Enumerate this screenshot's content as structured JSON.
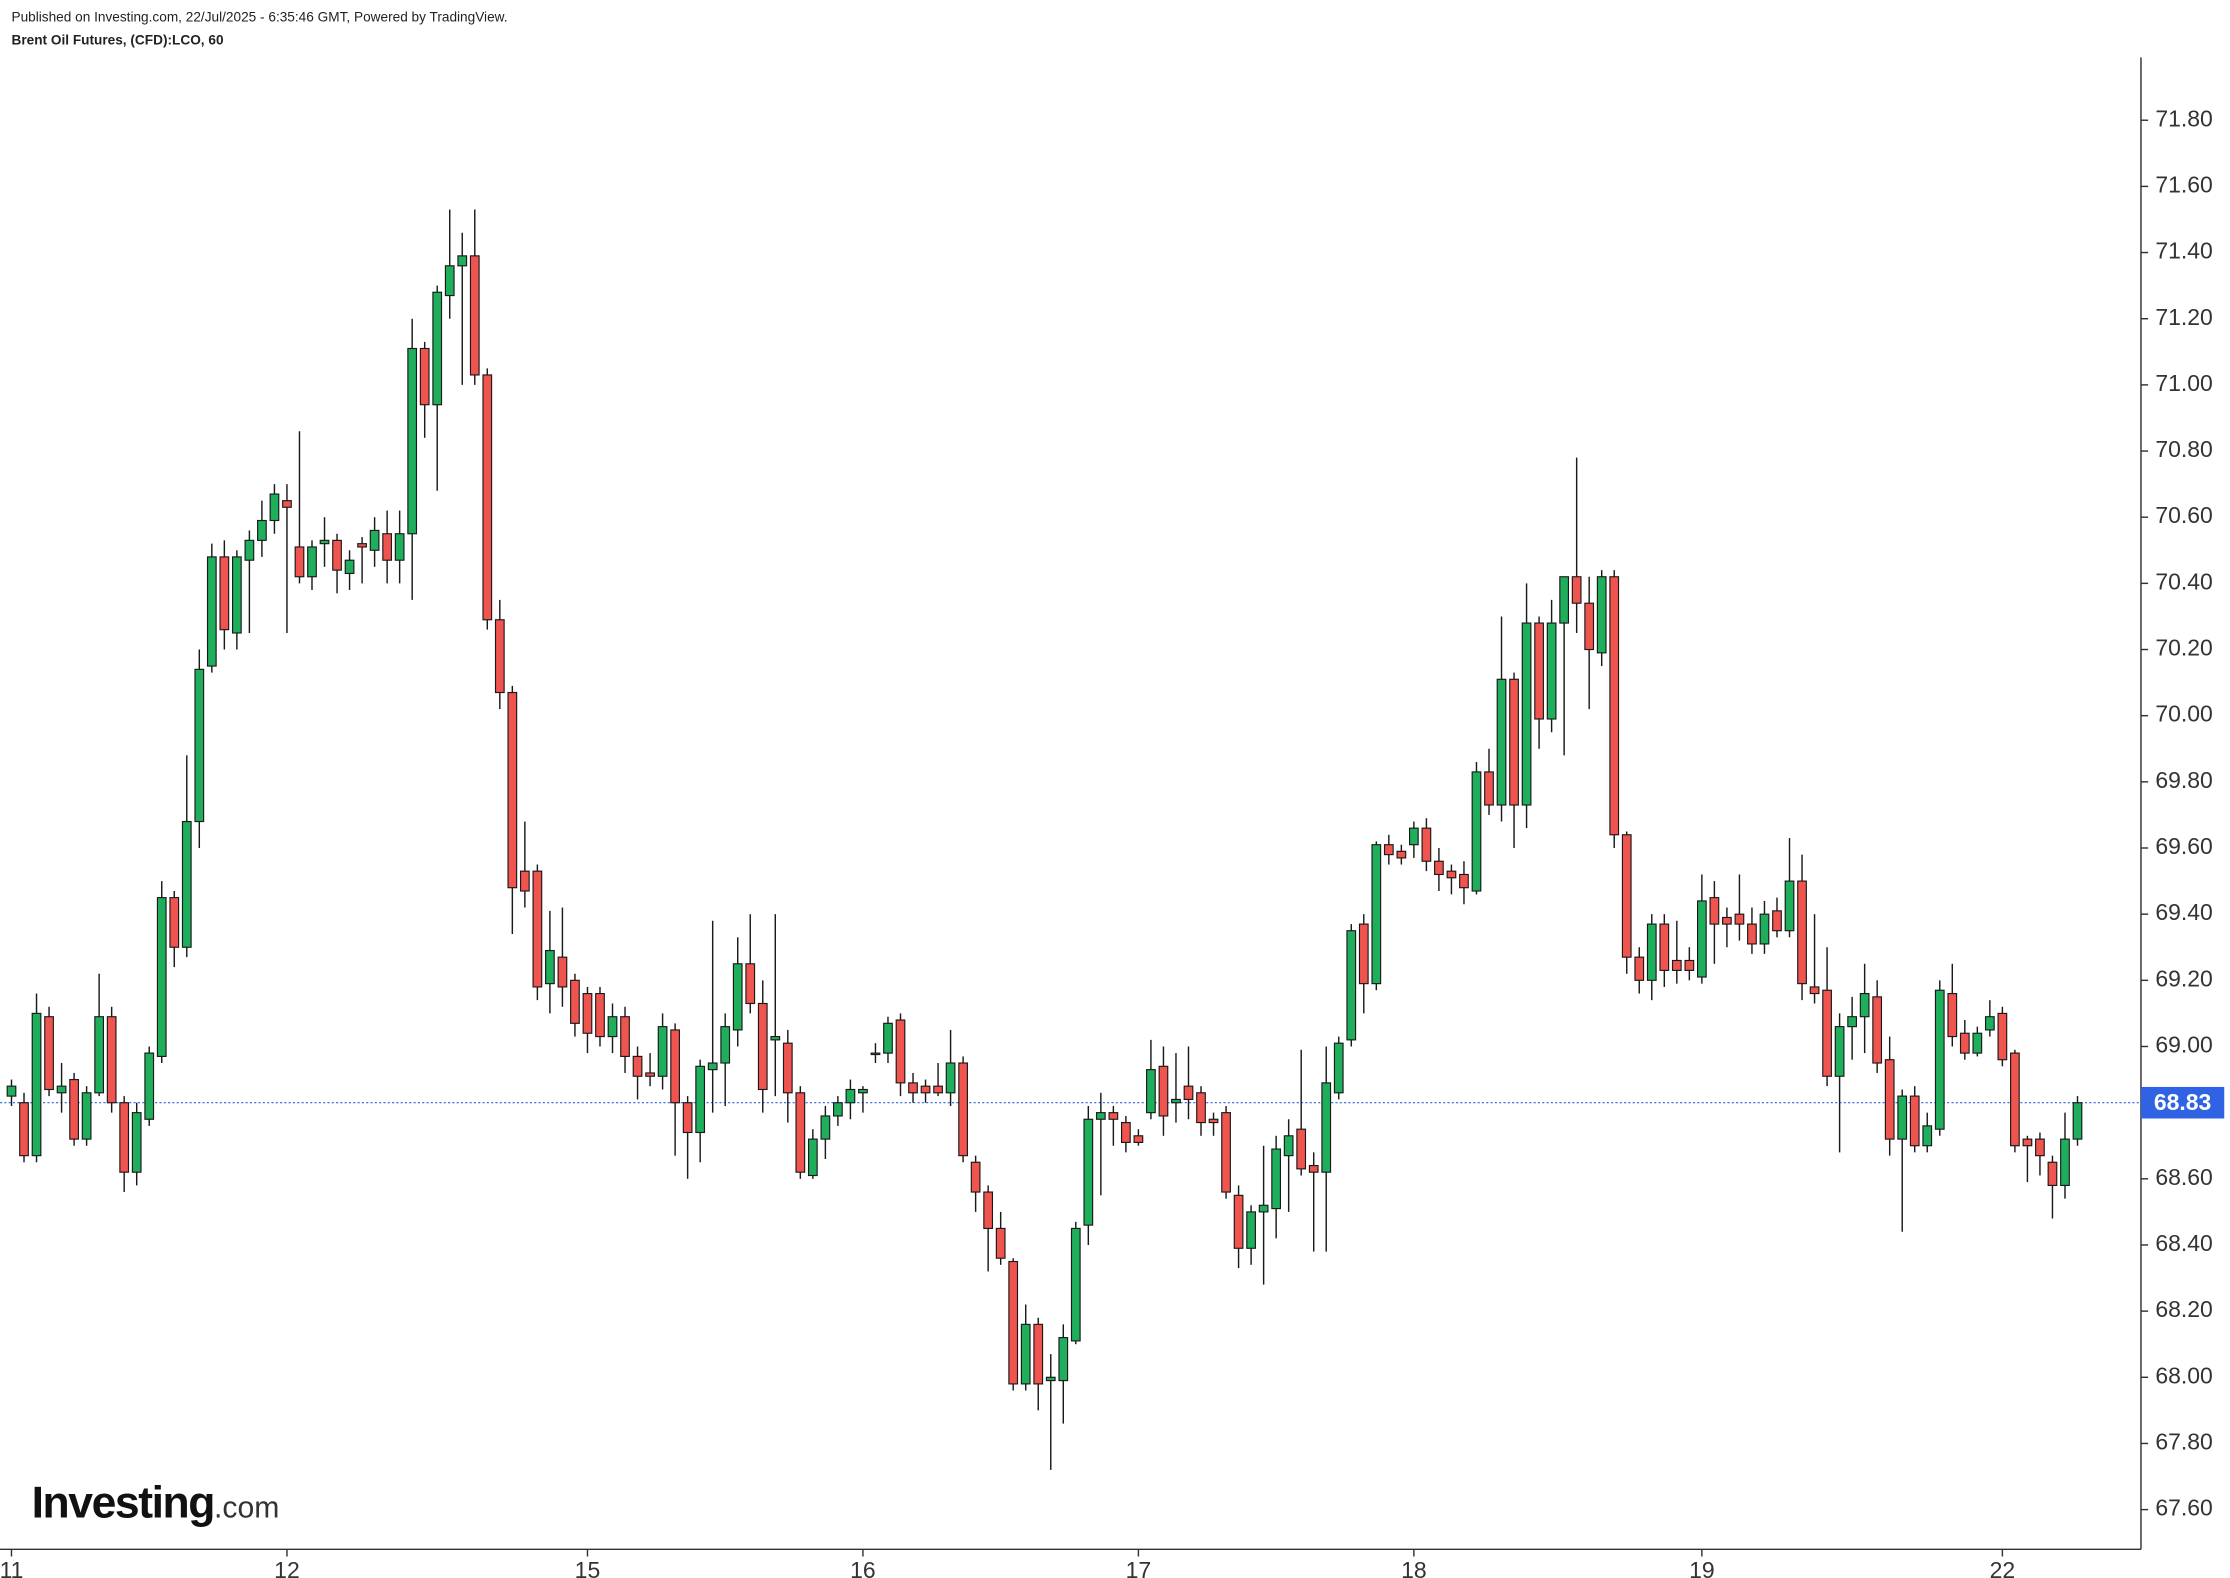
{
  "header": {
    "published": "Published on Investing.com, 22/Jul/2025 - 6:35:46 GMT, Powered by TradingView.",
    "instrument": "Brent Oil Futures, (CFD):LCO, 60"
  },
  "logo": {
    "name": "Investing",
    "suffix": ".com"
  },
  "chart_data": {
    "type": "candlestick",
    "categories": [
      "11",
      null,
      null,
      null,
      null,
      null,
      null,
      null,
      null,
      null,
      null,
      null,
      null,
      null,
      null,
      null,
      null,
      null,
      null,
      null,
      null,
      null,
      "12",
      null,
      null,
      null,
      null,
      null,
      null,
      null,
      null,
      null,
      null,
      null,
      null,
      null,
      null,
      null,
      null,
      null,
      null,
      null,
      null,
      null,
      null,
      null,
      "15",
      null,
      null,
      null,
      null,
      null,
      null,
      null,
      null,
      null,
      null,
      null,
      null,
      null,
      null,
      null,
      null,
      null,
      null,
      null,
      null,
      null,
      "16",
      null,
      null,
      null,
      null,
      null,
      null,
      null,
      null,
      null,
      null,
      null,
      null,
      null,
      null,
      null,
      null,
      null,
      null,
      null,
      null,
      null,
      "17",
      null,
      null,
      null,
      null,
      null,
      null,
      null,
      null,
      null,
      null,
      null,
      null,
      null,
      null,
      null,
      null,
      null,
      null,
      null,
      null,
      null,
      "18",
      null,
      null,
      null,
      null,
      null,
      null,
      null,
      null,
      null,
      null,
      null,
      null,
      null,
      null,
      null,
      null,
      null,
      null,
      null,
      null,
      null,
      null,
      "19",
      null,
      null,
      null,
      null,
      null,
      null,
      null,
      null,
      null,
      null,
      null,
      null,
      null,
      null,
      null,
      null,
      null,
      null,
      null,
      null,
      null,
      null,
      null,
      "22",
      null,
      null,
      null,
      null,
      null,
      null
    ],
    "open": [
      68.85,
      68.83,
      68.67,
      69.09,
      68.86,
      68.9,
      68.72,
      68.86,
      69.09,
      68.83,
      68.62,
      68.78,
      68.97,
      69.45,
      69.3,
      69.68,
      70.15,
      70.48,
      70.25,
      70.47,
      70.53,
      70.59,
      70.65,
      70.51,
      70.42,
      70.52,
      70.53,
      70.43,
      70.52,
      70.5,
      70.55,
      70.47,
      70.55,
      71.11,
      70.94,
      71.27,
      71.36,
      71.39,
      71.03,
      70.29,
      70.07,
      69.53,
      69.53,
      69.19,
      69.27,
      69.2,
      69.16,
      69.16,
      69.03,
      69.09,
      68.97,
      68.92,
      68.91,
      69.05,
      68.83,
      68.74,
      68.93,
      68.95,
      69.05,
      69.25,
      69.13,
      69.02,
      69.01,
      68.86,
      68.61,
      68.72,
      68.79,
      68.83,
      68.86,
      68.98,
      68.98,
      69.08,
      68.89,
      68.88,
      68.88,
      68.86,
      68.95,
      68.65,
      68.56,
      68.45,
      68.35,
      67.98,
      68.16,
      67.99,
      67.99,
      68.11,
      68.46,
      68.78,
      68.8,
      68.77,
      68.73,
      68.8,
      68.94,
      68.83,
      68.88,
      68.86,
      68.78,
      68.8,
      68.55,
      68.39,
      68.5,
      68.51,
      68.67,
      68.75,
      68.64,
      68.62,
      68.86,
      69.02,
      69.37,
      69.19,
      69.61,
      69.59,
      69.61,
      69.66,
      69.56,
      69.53,
      69.52,
      69.47,
      69.83,
      69.73,
      70.11,
      69.73,
      70.28,
      69.99,
      70.28,
      70.42,
      70.34,
      70.19,
      70.42,
      69.64,
      69.27,
      69.2,
      69.37,
      69.26,
      69.26,
      69.21,
      69.45,
      69.39,
      69.4,
      69.37,
      69.31,
      69.41,
      69.35,
      69.5,
      69.18,
      69.17,
      68.91,
      69.06,
      69.09,
      69.15,
      68.96,
      68.72,
      68.85,
      68.7,
      68.75,
      69.16,
      69.04,
      68.98,
      69.05,
      69.1,
      68.98,
      68.72,
      68.72,
      68.65,
      68.58,
      68.72
    ],
    "high": [
      68.9,
      68.86,
      69.16,
      69.12,
      68.95,
      68.92,
      68.88,
      69.22,
      69.12,
      68.85,
      68.83,
      69.0,
      69.5,
      69.47,
      69.88,
      70.2,
      70.52,
      70.53,
      70.5,
      70.56,
      70.65,
      70.7,
      70.7,
      70.86,
      70.53,
      70.6,
      70.55,
      70.5,
      70.54,
      70.6,
      70.62,
      70.62,
      71.2,
      71.13,
      71.3,
      71.53,
      71.46,
      71.53,
      71.05,
      70.35,
      70.09,
      69.68,
      69.55,
      69.41,
      69.42,
      69.22,
      69.18,
      69.18,
      69.13,
      69.12,
      69.0,
      68.98,
      69.1,
      69.07,
      68.85,
      68.96,
      69.38,
      69.1,
      69.33,
      69.4,
      69.2,
      69.4,
      69.05,
      68.88,
      68.75,
      68.82,
      68.85,
      68.9,
      68.88,
      69.01,
      69.09,
      69.1,
      68.92,
      68.9,
      68.95,
      69.05,
      68.97,
      68.67,
      68.58,
      68.5,
      68.36,
      68.22,
      68.18,
      68.07,
      68.16,
      68.47,
      68.82,
      68.86,
      68.82,
      68.79,
      68.75,
      69.02,
      69.0,
      68.98,
      69.0,
      68.88,
      68.8,
      68.82,
      68.58,
      68.52,
      68.7,
      68.73,
      68.78,
      68.99,
      68.68,
      69.0,
      69.03,
      69.37,
      69.4,
      69.62,
      69.64,
      69.61,
      69.68,
      69.69,
      69.6,
      69.55,
      69.56,
      69.86,
      69.9,
      70.3,
      70.13,
      70.4,
      70.3,
      70.35,
      70.42,
      70.78,
      70.42,
      70.44,
      70.44,
      69.65,
      69.3,
      69.4,
      69.4,
      69.38,
      69.3,
      69.52,
      69.5,
      69.42,
      69.52,
      69.42,
      69.44,
      69.45,
      69.63,
      69.58,
      69.4,
      69.3,
      69.1,
      69.15,
      69.25,
      69.2,
      69.03,
      68.87,
      68.88,
      68.8,
      69.2,
      69.25,
      69.08,
      69.06,
      69.14,
      69.12,
      68.99,
      68.73,
      68.74,
      68.67,
      68.8,
      68.85
    ],
    "low": [
      68.82,
      68.65,
      68.65,
      68.85,
      68.8,
      68.7,
      68.7,
      68.85,
      68.8,
      68.56,
      68.58,
      68.76,
      68.95,
      69.24,
      69.27,
      69.6,
      70.13,
      70.2,
      70.2,
      70.25,
      70.48,
      70.55,
      70.25,
      70.4,
      70.38,
      70.45,
      70.37,
      70.38,
      70.4,
      70.45,
      70.4,
      70.4,
      70.35,
      70.84,
      70.68,
      71.2,
      71.0,
      71.0,
      70.26,
      70.02,
      69.34,
      69.42,
      69.14,
      69.1,
      69.12,
      69.03,
      68.98,
      69.0,
      68.98,
      68.92,
      68.84,
      68.88,
      68.87,
      68.67,
      68.6,
      68.65,
      68.8,
      68.82,
      69.0,
      69.1,
      68.8,
      68.85,
      68.77,
      68.6,
      68.6,
      68.66,
      68.76,
      68.78,
      68.8,
      68.95,
      68.95,
      68.85,
      68.83,
      68.83,
      68.85,
      68.82,
      68.65,
      68.5,
      68.32,
      68.34,
      67.96,
      67.96,
      67.9,
      67.72,
      67.86,
      68.1,
      68.4,
      68.55,
      68.7,
      68.68,
      68.7,
      68.78,
      68.73,
      68.77,
      68.78,
      68.73,
      68.73,
      68.54,
      68.33,
      68.34,
      68.28,
      68.42,
      68.5,
      68.61,
      68.38,
      68.38,
      68.84,
      69.0,
      69.1,
      69.17,
      69.55,
      69.55,
      69.57,
      69.53,
      69.47,
      69.46,
      69.43,
      69.46,
      69.7,
      69.68,
      69.6,
      69.66,
      69.9,
      69.95,
      69.88,
      70.25,
      70.02,
      70.15,
      69.6,
      69.22,
      69.16,
      69.14,
      69.18,
      69.19,
      69.2,
      69.19,
      69.25,
      69.3,
      69.32,
      69.28,
      69.28,
      69.33,
      69.33,
      69.14,
      69.13,
      68.88,
      68.68,
      68.96,
      68.98,
      68.92,
      68.67,
      68.44,
      68.68,
      68.68,
      68.73,
      69.0,
      68.96,
      68.97,
      69.03,
      68.94,
      68.68,
      68.59,
      68.61,
      68.48,
      68.54,
      68.7
    ],
    "close": [
      68.88,
      68.67,
      69.1,
      68.87,
      68.88,
      68.72,
      68.86,
      69.09,
      68.83,
      68.62,
      68.8,
      68.98,
      69.45,
      69.3,
      69.68,
      70.14,
      70.48,
      70.26,
      70.48,
      70.53,
      70.59,
      70.67,
      70.63,
      70.42,
      70.51,
      70.53,
      70.44,
      70.47,
      70.51,
      70.56,
      70.47,
      70.55,
      71.11,
      70.94,
      71.28,
      71.36,
      71.39,
      71.03,
      70.29,
      70.07,
      69.48,
      69.47,
      69.18,
      69.29,
      69.18,
      69.07,
      69.04,
      69.03,
      69.09,
      68.97,
      68.91,
      68.91,
      69.06,
      68.83,
      68.74,
      68.94,
      68.95,
      69.06,
      69.25,
      69.13,
      68.87,
      69.03,
      68.86,
      68.62,
      68.72,
      68.79,
      68.83,
      68.87,
      68.87,
      68.98,
      69.07,
      68.89,
      68.86,
      68.86,
      68.86,
      68.95,
      68.67,
      68.56,
      68.45,
      68.36,
      67.98,
      68.16,
      67.98,
      68.0,
      68.12,
      68.45,
      68.78,
      68.8,
      68.78,
      68.71,
      68.71,
      68.93,
      68.79,
      68.84,
      68.84,
      68.77,
      68.77,
      68.56,
      68.39,
      68.5,
      68.52,
      68.69,
      68.73,
      68.63,
      68.62,
      68.89,
      69.01,
      69.35,
      69.19,
      69.61,
      69.58,
      69.57,
      69.66,
      69.56,
      69.52,
      69.51,
      69.48,
      69.83,
      69.73,
      70.11,
      69.73,
      70.28,
      69.99,
      70.28,
      70.42,
      70.34,
      70.2,
      70.42,
      69.64,
      69.27,
      69.2,
      69.37,
      69.23,
      69.23,
      69.23,
      69.44,
      69.37,
      69.37,
      69.37,
      69.31,
      69.4,
      69.35,
      69.5,
      69.19,
      69.16,
      68.91,
      69.06,
      69.09,
      69.16,
      68.95,
      68.72,
      68.85,
      68.7,
      68.76,
      69.17,
      69.03,
      68.98,
      69.04,
      69.09,
      68.96,
      68.7,
      68.7,
      68.67,
      68.58,
      68.72,
      68.83
    ],
    "up_color": "#1fae5b",
    "down_color": "#f0544f",
    "last_price": 68.83,
    "last_price_color": "#2f63e4",
    "ylim": [
      67.48,
      71.99
    ],
    "yticks": [
      {
        "value": 67.6,
        "label": "67.60"
      },
      {
        "value": 67.8,
        "label": "67.80"
      },
      {
        "value": 68,
        "label": "68.00"
      },
      {
        "value": 68.2,
        "label": "68.20"
      },
      {
        "value": 68.4,
        "label": "68.40"
      },
      {
        "value": 68.6,
        "label": "68.60"
      },
      {
        "value": 68.8,
        "label": "68.80"
      },
      {
        "value": 69,
        "label": "69.00"
      },
      {
        "value": 69.2,
        "label": "69.20"
      },
      {
        "value": 69.4,
        "label": "69.40"
      },
      {
        "value": 69.6,
        "label": "69.60"
      },
      {
        "value": 69.8,
        "label": "69.80"
      },
      {
        "value": 70,
        "label": "70.00"
      },
      {
        "value": 70.2,
        "label": "70.20"
      },
      {
        "value": 70.4,
        "label": "70.40"
      },
      {
        "value": 70.6,
        "label": "70.60"
      },
      {
        "value": 70.8,
        "label": "70.80"
      },
      {
        "value": 71,
        "label": "71.00"
      },
      {
        "value": 71.2,
        "label": "71.20"
      },
      {
        "value": 71.4,
        "label": "71.40"
      },
      {
        "value": 71.6,
        "label": "71.60"
      },
      {
        "value": 71.8,
        "label": "71.80"
      }
    ],
    "grid": false
  }
}
